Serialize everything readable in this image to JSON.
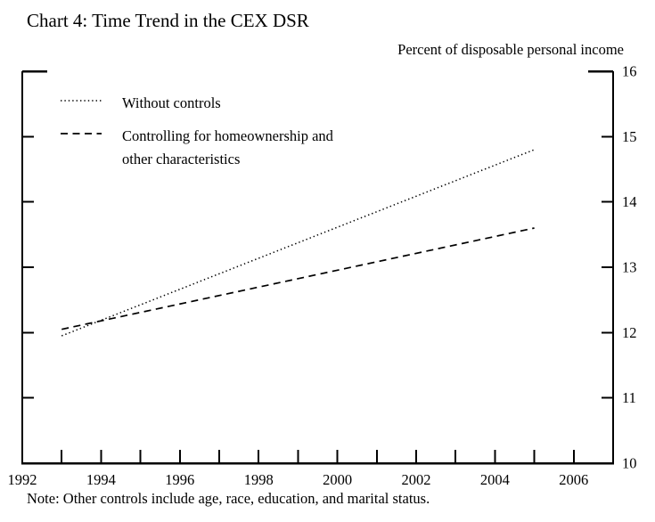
{
  "chart_data": {
    "type": "line",
    "title": "Chart 4: Time Trend in the CEX DSR",
    "ylabel": "Percent of disposable personal income",
    "xlabel": "",
    "note": "Note: Other controls include age, race, education, and marital status.",
    "xlim": [
      1992,
      2007
    ],
    "ylim": [
      10,
      16
    ],
    "x_minor_ticks": [
      1993,
      1994,
      1995,
      1996,
      1997,
      1998,
      1999,
      2000,
      2001,
      2002,
      2003,
      2004,
      2005,
      2006
    ],
    "x_labeled_years": [
      "1992",
      "1994",
      "1996",
      "1998",
      "2000",
      "2002",
      "2004",
      "2006"
    ],
    "y_inner_ticks": [
      11,
      12,
      13,
      14,
      15
    ],
    "y_labels": [
      "10",
      "11",
      "12",
      "13",
      "14",
      "15",
      "16"
    ],
    "grid": false,
    "legend_position": "top-left-inside",
    "y_axis_labels_side": "right",
    "series": [
      {
        "name": "Without controls",
        "label_lines": [
          "Without controls"
        ],
        "style": "dotted",
        "color": "#000000",
        "x": [
          1993,
          2005
        ],
        "y": [
          11.95,
          14.8
        ]
      },
      {
        "name": "Controlling for homeownership and other characteristics",
        "label_lines": [
          "Controlling for homeownership and",
          "other characteristics"
        ],
        "style": "dashed",
        "color": "#000000",
        "x": [
          1993,
          2005
        ],
        "y": [
          12.05,
          13.6
        ]
      }
    ],
    "colors": {
      "axis": "#000000",
      "text": "#000000",
      "background": "#ffffff"
    }
  }
}
